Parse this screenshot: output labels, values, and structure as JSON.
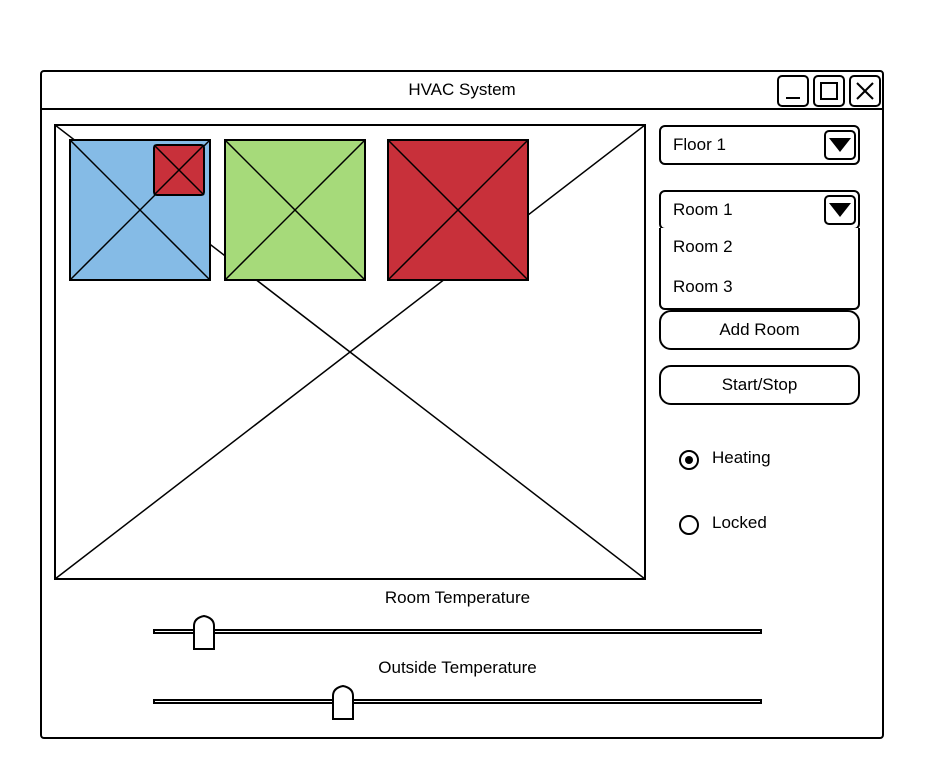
{
  "window": {
    "title": "HVAC System",
    "controls": {
      "minimize_icon": "minimize-icon",
      "maximize_icon": "maximize-icon",
      "close_icon": "close-icon"
    }
  },
  "floor_plan": {
    "placeholder_icon": "image-placeholder-icon",
    "rooms": [
      {
        "color": "#85BBE6",
        "status_color": "#C8303A"
      },
      {
        "color": "#A6DA7A"
      },
      {
        "color": "#C8303A"
      }
    ]
  },
  "sidebar": {
    "floor_select": {
      "value": "Floor 1",
      "icon": "chevron-down-icon"
    },
    "room_select": {
      "value": "Room 1",
      "icon": "chevron-down-icon",
      "options": [
        "Room 2",
        "Room 3"
      ]
    },
    "add_room_label": "Add Room",
    "start_stop_label": "Start/Stop",
    "modes": [
      {
        "label": "Heating",
        "selected": true
      },
      {
        "label": "Locked",
        "selected": false
      }
    ]
  },
  "sliders": {
    "room_temperature": {
      "label": "Room Temperature",
      "value": 0.077
    },
    "outside_temperature": {
      "label": "Outside Temperature",
      "value": 0.308
    }
  }
}
